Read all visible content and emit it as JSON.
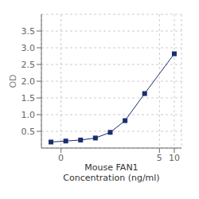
{
  "chart_data": {
    "type": "line",
    "x": [
      0.0313,
      0.0625,
      0.125,
      0.25,
      0.5,
      1.0,
      2.5,
      10.0
    ],
    "values": [
      0.18,
      0.21,
      0.24,
      0.3,
      0.47,
      0.82,
      1.63,
      2.82
    ],
    "color": "#1a2e6e",
    "marker": "square",
    "x_label": "Mouse FAN1\nConcentration (ng/ml)",
    "y_label": "OD",
    "log": "x",
    "xlim": [
      0.02,
      14
    ],
    "xticks": [
      {
        "value": 0.05,
        "label": "0"
      },
      5,
      10
    ],
    "ylim": [
      0.0,
      4.0
    ],
    "yticks": [
      0.5,
      {
        "value": 1.0,
        "label": "1.0"
      },
      1.5,
      {
        "value": 2.0,
        "label": "2.0"
      },
      2.5,
      {
        "value": 3.0,
        "label": "3.0"
      },
      3.5
    ],
    "grid": true
  }
}
